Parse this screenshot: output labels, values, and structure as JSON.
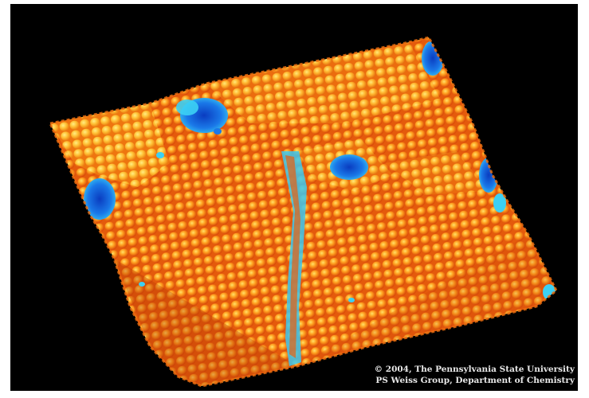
{
  "image": {
    "subject": "atomic-surface-render",
    "background_color": "#000000",
    "palette": {
      "deep": "#1460e0",
      "shallow": "#2ec8f0",
      "surface_dark": "#e8500a",
      "surface_mid": "#ff8c14",
      "surface_light": "#ffc83a",
      "highlight": "#ffe26a"
    }
  },
  "credits": {
    "line1": "© 2004, The Pennsylvania State University",
    "line2": "PS Weiss Group, Department of Chemistry"
  }
}
